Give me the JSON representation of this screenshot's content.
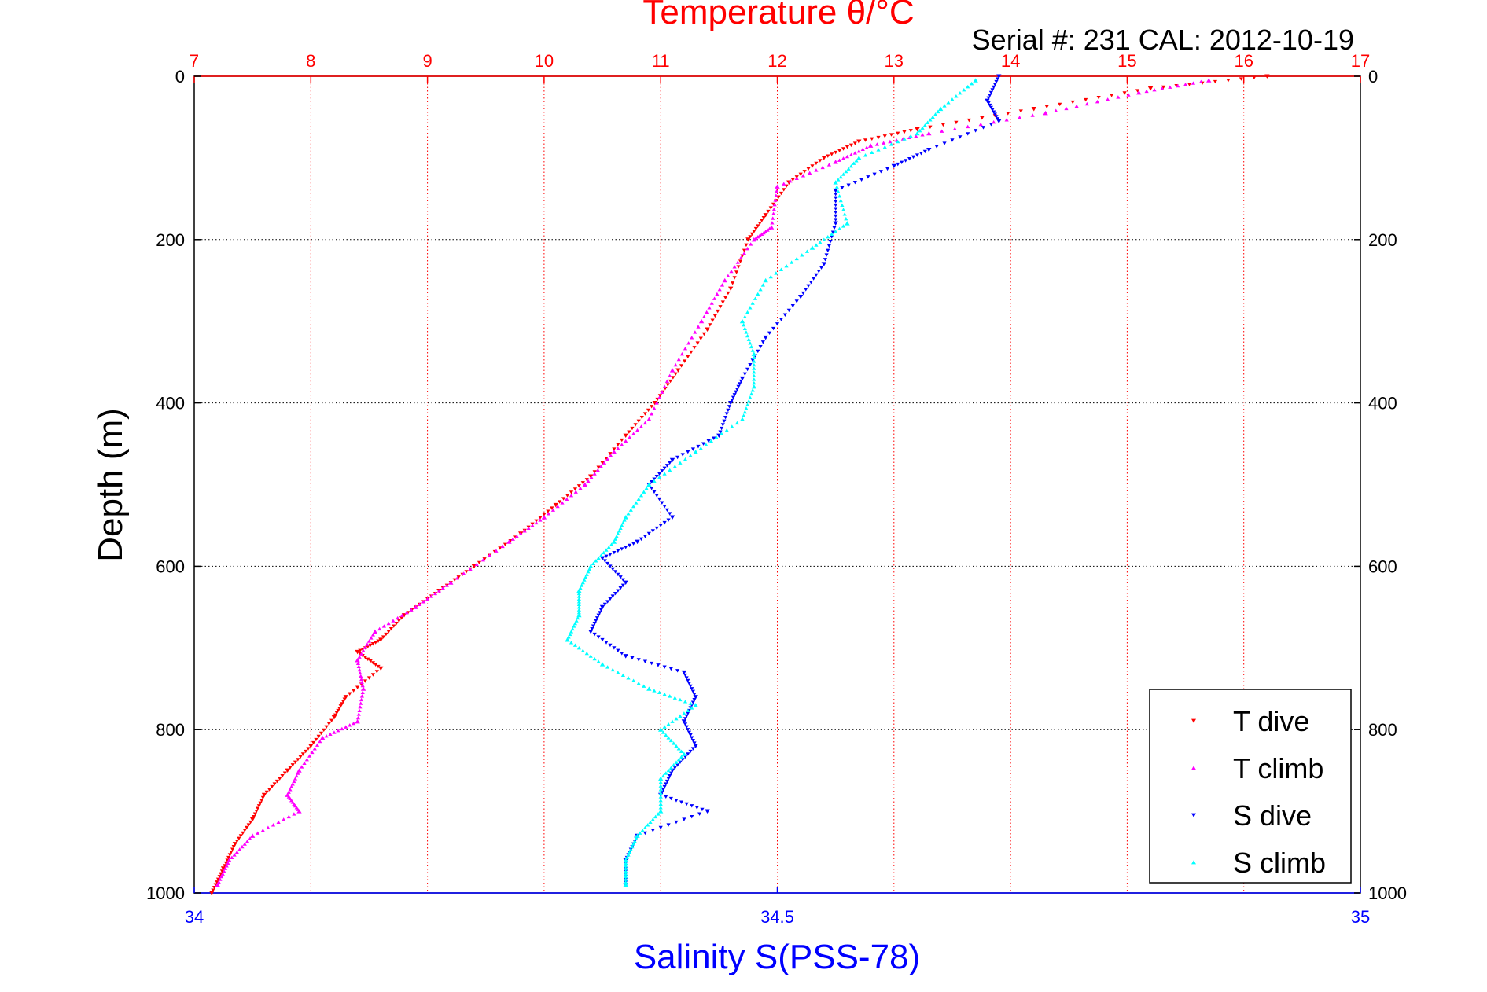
{
  "chart_data": {
    "type": "scatter",
    "title": "Temperature θ/°C",
    "subtitle": "Serial #: 231  CAL: 2012-10-19",
    "xlabel": "Salinity S(PSS-78)",
    "ylabel": "Depth (m)",
    "x_top": {
      "label": "Temperature θ/°C",
      "lim": [
        7,
        17
      ],
      "ticks": [
        "7",
        "8",
        "9",
        "10",
        "11",
        "12",
        "13",
        "14",
        "15",
        "16",
        "17"
      ],
      "color": "#ff0000"
    },
    "x_bottom": {
      "label": "Salinity S(PSS-78)",
      "lim": [
        34,
        35
      ],
      "ticks": [
        "34",
        "34.5",
        "35"
      ],
      "color": "#0000ff"
    },
    "y": {
      "lim": [
        0,
        1000
      ],
      "reversed": true,
      "ticks": [
        "0",
        "200",
        "400",
        "600",
        "800",
        "1000"
      ]
    },
    "grid": true,
    "legend_position": "bottom-right",
    "series": [
      {
        "name": "T dive",
        "axis": "top",
        "color": "#ff0000",
        "marker": "triangle-down",
        "points": [
          [
            16.2,
            0
          ],
          [
            15.2,
            15
          ],
          [
            14.2,
            40
          ],
          [
            13.2,
            65
          ],
          [
            12.7,
            80
          ],
          [
            12.4,
            100
          ],
          [
            12.1,
            130
          ],
          [
            11.9,
            170
          ],
          [
            11.75,
            200
          ],
          [
            11.6,
            260
          ],
          [
            11.4,
            310
          ],
          [
            11.15,
            360
          ],
          [
            10.95,
            400
          ],
          [
            10.7,
            440
          ],
          [
            10.4,
            490
          ],
          [
            10.1,
            525
          ],
          [
            9.8,
            560
          ],
          [
            9.4,
            600
          ],
          [
            9.1,
            630
          ],
          [
            8.8,
            660
          ],
          [
            8.6,
            690
          ],
          [
            8.4,
            705
          ],
          [
            8.6,
            725
          ],
          [
            8.3,
            760
          ],
          [
            8.2,
            785
          ],
          [
            8.0,
            820
          ],
          [
            7.8,
            850
          ],
          [
            7.6,
            880
          ],
          [
            7.5,
            910
          ],
          [
            7.35,
            940
          ],
          [
            7.25,
            970
          ],
          [
            7.15,
            1000
          ]
        ]
      },
      {
        "name": "T climb",
        "axis": "top",
        "color": "#ff00ff",
        "marker": "triangle-up",
        "points": [
          [
            15.7,
            5
          ],
          [
            15.1,
            20
          ],
          [
            14.3,
            45
          ],
          [
            13.3,
            70
          ],
          [
            12.8,
            85
          ],
          [
            12.5,
            105
          ],
          [
            12.0,
            135
          ],
          [
            11.95,
            185
          ],
          [
            11.8,
            200
          ],
          [
            11.55,
            250
          ],
          [
            11.35,
            300
          ],
          [
            11.1,
            360
          ],
          [
            10.9,
            420
          ],
          [
            10.6,
            460
          ],
          [
            10.35,
            500
          ],
          [
            10.0,
            540
          ],
          [
            9.7,
            570
          ],
          [
            9.2,
            620
          ],
          [
            8.9,
            650
          ],
          [
            8.55,
            680
          ],
          [
            8.4,
            715
          ],
          [
            8.45,
            750
          ],
          [
            8.4,
            790
          ],
          [
            8.1,
            810
          ],
          [
            7.9,
            850
          ],
          [
            7.8,
            880
          ],
          [
            7.9,
            900
          ],
          [
            7.5,
            930
          ],
          [
            7.3,
            960
          ],
          [
            7.2,
            990
          ]
        ]
      },
      {
        "name": "S dive",
        "axis": "bottom",
        "color": "#0000ff",
        "marker": "triangle-down",
        "points": [
          [
            34.69,
            0
          ],
          [
            34.68,
            30
          ],
          [
            34.69,
            55
          ],
          [
            34.63,
            90
          ],
          [
            34.6,
            110
          ],
          [
            34.55,
            140
          ],
          [
            34.55,
            180
          ],
          [
            34.54,
            230
          ],
          [
            34.52,
            270
          ],
          [
            34.49,
            320
          ],
          [
            34.47,
            370
          ],
          [
            34.46,
            400
          ],
          [
            34.45,
            440
          ],
          [
            34.41,
            470
          ],
          [
            34.39,
            500
          ],
          [
            34.41,
            540
          ],
          [
            34.38,
            570
          ],
          [
            34.35,
            590
          ],
          [
            34.37,
            620
          ],
          [
            34.35,
            650
          ],
          [
            34.34,
            680
          ],
          [
            34.37,
            710
          ],
          [
            34.42,
            730
          ],
          [
            34.43,
            760
          ],
          [
            34.42,
            790
          ],
          [
            34.43,
            820
          ],
          [
            34.41,
            850
          ],
          [
            34.4,
            880
          ],
          [
            34.44,
            900
          ],
          [
            34.38,
            930
          ],
          [
            34.37,
            960
          ],
          [
            34.37,
            990
          ]
        ]
      },
      {
        "name": "S climb",
        "axis": "bottom",
        "color": "#00ffff",
        "marker": "triangle-up",
        "points": [
          [
            34.67,
            5
          ],
          [
            34.64,
            40
          ],
          [
            34.62,
            70
          ],
          [
            34.57,
            100
          ],
          [
            34.55,
            130
          ],
          [
            34.56,
            180
          ],
          [
            34.53,
            210
          ],
          [
            34.49,
            250
          ],
          [
            34.47,
            300
          ],
          [
            34.48,
            340
          ],
          [
            34.48,
            380
          ],
          [
            34.47,
            420
          ],
          [
            34.43,
            460
          ],
          [
            34.39,
            500
          ],
          [
            34.37,
            540
          ],
          [
            34.36,
            570
          ],
          [
            34.34,
            600
          ],
          [
            34.33,
            630
          ],
          [
            34.33,
            660
          ],
          [
            34.32,
            690
          ],
          [
            34.35,
            720
          ],
          [
            34.39,
            750
          ],
          [
            34.43,
            770
          ],
          [
            34.4,
            800
          ],
          [
            34.42,
            830
          ],
          [
            34.4,
            860
          ],
          [
            34.4,
            900
          ],
          [
            34.38,
            930
          ],
          [
            34.37,
            960
          ],
          [
            34.37,
            990
          ]
        ]
      }
    ]
  }
}
